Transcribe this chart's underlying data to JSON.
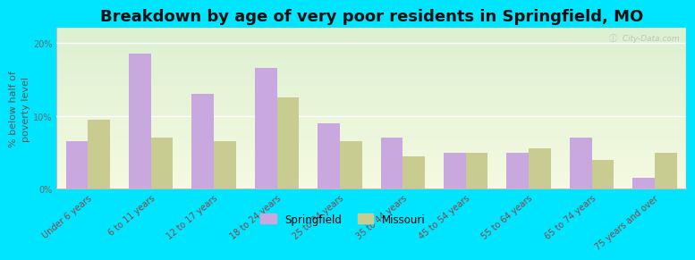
{
  "title": "Breakdown by age of very poor residents in Springfield, MO",
  "ylabel": "% below half of\npoverty level",
  "categories": [
    "Under 6 years",
    "6 to 11 years",
    "12 to 17 years",
    "18 to 24 years",
    "25 to 34 years",
    "35 to 44 years",
    "45 to 54 years",
    "55 to 64 years",
    "65 to 74 years",
    "75 years and over"
  ],
  "springfield_values": [
    6.5,
    18.5,
    13.0,
    16.5,
    9.0,
    7.0,
    5.0,
    5.0,
    7.0,
    1.5
  ],
  "missouri_values": [
    9.5,
    7.0,
    6.5,
    12.5,
    6.5,
    4.5,
    5.0,
    5.5,
    4.0,
    5.0
  ],
  "springfield_color": "#c9a8e0",
  "missouri_color": "#c8cc90",
  "ylim": [
    0,
    22
  ],
  "yticks": [
    0,
    10,
    20
  ],
  "ytick_labels": [
    "0%",
    "10%",
    "20%"
  ],
  "outer_bg": "#00e5ff",
  "bar_width": 0.35,
  "title_fontsize": 13,
  "axis_label_fontsize": 8,
  "tick_fontsize": 7,
  "legend_labels": [
    "Springfield",
    "Missouri"
  ],
  "watermark": "ⓘ  City-Data.com"
}
